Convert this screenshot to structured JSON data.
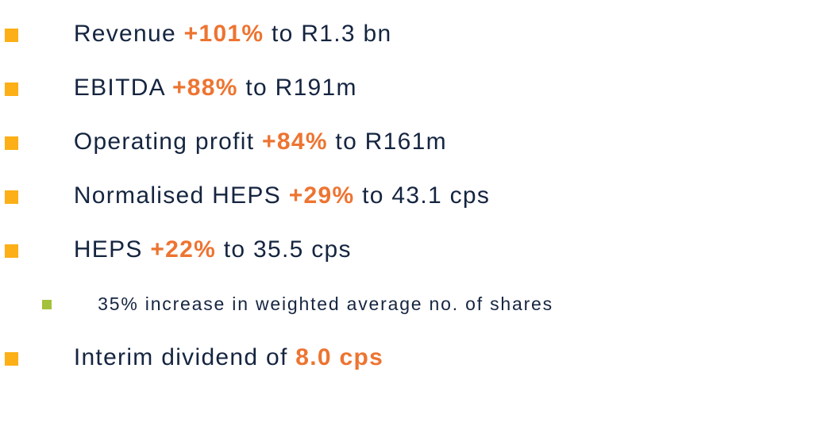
{
  "slide": {
    "colors": {
      "text": "#152540",
      "highlight": "#ED7431",
      "bullet": "#FCAF17",
      "sub_bullet": "#A4C13A"
    },
    "bullets": [
      {
        "level": 1,
        "segments": [
          {
            "t": "Revenue ",
            "s": "plain"
          },
          {
            "t": "+101%",
            "s": "highlight"
          },
          {
            "t": " to R1.3 bn",
            "s": "plain"
          }
        ]
      },
      {
        "level": 1,
        "segments": [
          {
            "t": "EBITDA ",
            "s": "plain"
          },
          {
            "t": "+88%",
            "s": "highlight"
          },
          {
            "t": " to R191m",
            "s": "plain"
          }
        ]
      },
      {
        "level": 1,
        "segments": [
          {
            "t": "Operating profit ",
            "s": "plain"
          },
          {
            "t": "+84%",
            "s": "highlight"
          },
          {
            "t": " to R161m",
            "s": "plain"
          }
        ]
      },
      {
        "level": 1,
        "segments": [
          {
            "t": "Normalised HEPS ",
            "s": "plain"
          },
          {
            "t": "+29%",
            "s": "highlight"
          },
          {
            "t": " to 43.1 cps",
            "s": "plain"
          }
        ]
      },
      {
        "level": 1,
        "segments": [
          {
            "t": "HEPS ",
            "s": "plain"
          },
          {
            "t": "+22%",
            "s": "highlight"
          },
          {
            "t": " to 35.5 cps",
            "s": "plain"
          }
        ]
      },
      {
        "level": 2,
        "segments": [
          {
            "t": "35% increase in weighted average no. of shares",
            "s": "plain"
          }
        ]
      },
      {
        "level": 1,
        "segments": [
          {
            "t": "Interim dividend of ",
            "s": "plain"
          },
          {
            "t": "8.0 cps",
            "s": "highlight"
          }
        ]
      }
    ]
  }
}
